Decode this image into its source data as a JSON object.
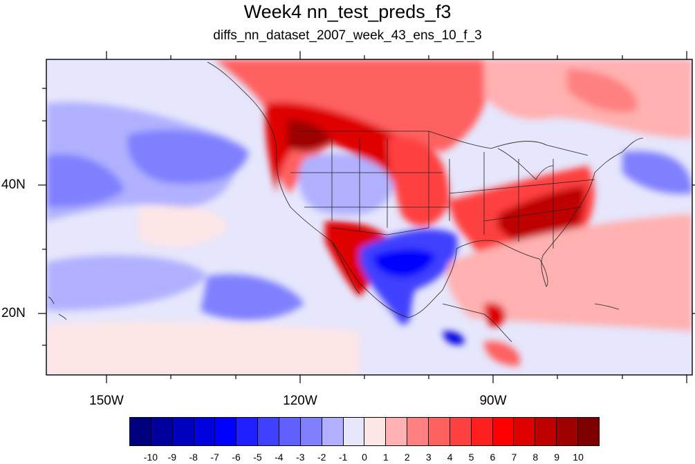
{
  "title": "Week4 nn_test_preds_f3",
  "subtitle": "diffs_nn_dataset_2007_week_43_ens_10_f_3",
  "lon_labels": [
    {
      "text": "150W",
      "lon": -150
    },
    {
      "text": "120W",
      "lon": -120
    },
    {
      "text": "90W",
      "lon": -90
    }
  ],
  "lat_labels": [
    {
      "text": "40N",
      "lat": 40
    },
    {
      "text": "20N",
      "lat": 20
    }
  ],
  "map_extent": {
    "lon_min": -159,
    "lon_max": -60,
    "lat_min": 10,
    "lat_max": 59
  },
  "colorbar": {
    "colors": [
      "#00007f",
      "#00009f",
      "#0000bf",
      "#0000df",
      "#0000ff",
      "#1f1fff",
      "#4040ff",
      "#6060ff",
      "#8080ff",
      "#b0b0ff",
      "#e6e6fc",
      "#fde6e6",
      "#ffb0b0",
      "#ff8080",
      "#ff6060",
      "#ff4040",
      "#ff1f1f",
      "#ff0000",
      "#df0000",
      "#bf0000",
      "#9f0000",
      "#7f0000"
    ],
    "labels": [
      "-10",
      "-9",
      "-8",
      "-7",
      "-6",
      "-5",
      "-4",
      "-3",
      "-2",
      "-1",
      "0",
      "1",
      "2",
      "3",
      "4",
      "5",
      "6",
      "7",
      "8",
      "9",
      "10"
    ]
  }
}
